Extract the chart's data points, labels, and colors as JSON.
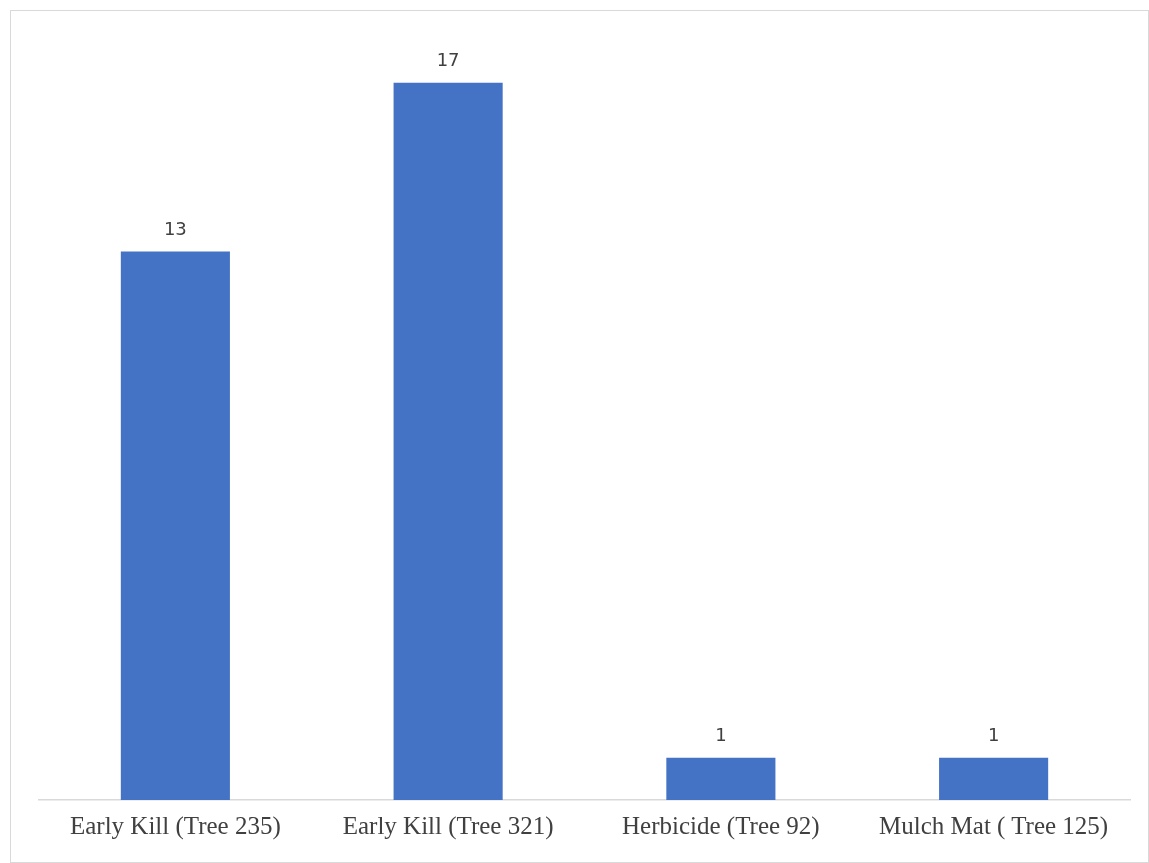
{
  "chart_data": {
    "type": "bar",
    "categories": [
      "Early Kill (Tree 235)",
      "Early Kill (Tree 321)",
      "Herbicide (Tree 92)",
      "Mulch Mat ( Tree 125)"
    ],
    "values": [
      13,
      17,
      1,
      1
    ],
    "color": "#4472c4",
    "data_labels": true,
    "grid": false,
    "legend": false
  }
}
